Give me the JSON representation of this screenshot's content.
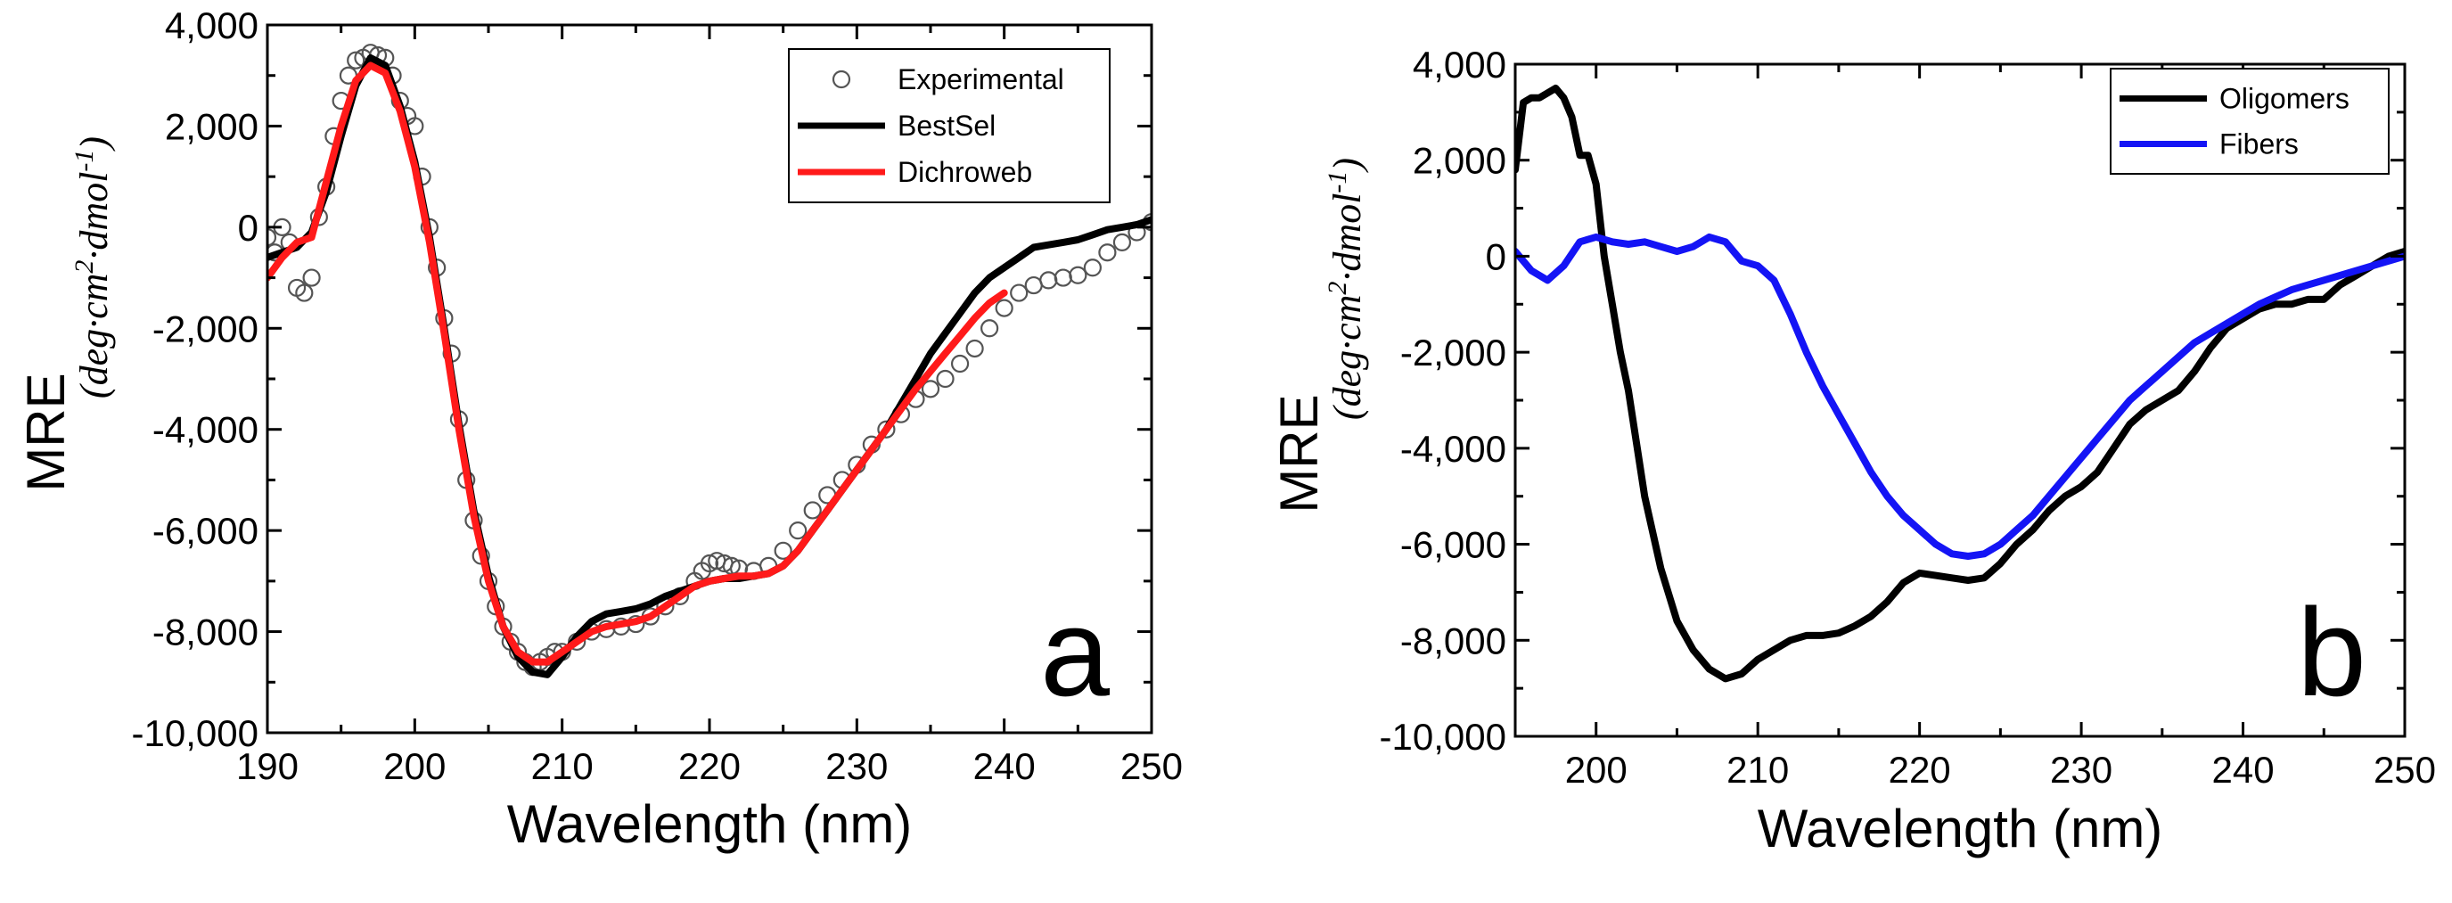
{
  "chart_data": [
    {
      "type": "line",
      "panel_label": "a",
      "xlabel": "Wavelength (nm)",
      "ylabel": "MRE",
      "ylabel_units": [
        "(deg",
        "·",
        "cm",
        "2",
        "·",
        "dmol",
        "-1",
        ")"
      ],
      "xlim": [
        190,
        250
      ],
      "ylim": [
        -10000,
        4000
      ],
      "x_ticks": [
        190,
        200,
        210,
        220,
        230,
        240,
        250
      ],
      "x_tick_labels": [
        "190",
        "200",
        "210",
        "220",
        "230",
        "240",
        "250"
      ],
      "y_ticks": [
        -10000,
        -8000,
        -6000,
        -4000,
        -2000,
        0,
        2000,
        4000
      ],
      "y_tick_labels": [
        "-10,000",
        "-8,000",
        "-6,000",
        "-4,000",
        "-2,000",
        "0",
        "2,000",
        "4,000"
      ],
      "legend_position": "top-right",
      "grid": false,
      "series": [
        {
          "name": "Experimental",
          "style": "markers",
          "color": "#555555",
          "x": [
            190,
            190.5,
            191,
            191.5,
            192,
            192.5,
            193,
            193.5,
            194,
            194.5,
            195,
            195.5,
            196,
            196.5,
            197,
            197.5,
            198,
            198.5,
            199,
            199.5,
            200,
            200.5,
            201,
            201.5,
            202,
            202.5,
            203,
            203.5,
            204,
            204.5,
            205,
            205.5,
            206,
            206.5,
            207,
            207.5,
            208,
            208.5,
            209,
            209.5,
            210,
            211,
            212,
            213,
            214,
            215,
            216,
            217,
            218,
            219,
            219.5,
            220,
            220.5,
            221,
            221.5,
            222,
            223,
            224,
            225,
            226,
            227,
            228,
            229,
            230,
            231,
            232,
            233,
            234,
            235,
            236,
            237,
            238,
            239,
            240,
            241,
            242,
            243,
            244,
            245,
            246,
            247,
            248,
            249,
            250
          ],
          "y": [
            -200,
            -500,
            0,
            -300,
            -1200,
            -1300,
            -1000,
            200,
            800,
            1800,
            2500,
            3000,
            3300,
            3350,
            3450,
            3400,
            3350,
            3000,
            2500,
            2200,
            2000,
            1000,
            0,
            -800,
            -1800,
            -2500,
            -3800,
            -5000,
            -5800,
            -6500,
            -7000,
            -7500,
            -7900,
            -8200,
            -8400,
            -8600,
            -8700,
            -8600,
            -8500,
            -8400,
            -8400,
            -8200,
            -8000,
            -7950,
            -7900,
            -7850,
            -7700,
            -7500,
            -7300,
            -7000,
            -6800,
            -6650,
            -6600,
            -6650,
            -6700,
            -6750,
            -6800,
            -6700,
            -6400,
            -6000,
            -5600,
            -5300,
            -5000,
            -4700,
            -4300,
            -4000,
            -3700,
            -3400,
            -3200,
            -3000,
            -2700,
            -2400,
            -2000,
            -1600,
            -1300,
            -1150,
            -1050,
            -1000,
            -950,
            -800,
            -500,
            -300,
            -100,
            100
          ]
        },
        {
          "name": "BestSel",
          "style": "line",
          "color": "#000000",
          "x": [
            190,
            191,
            192,
            193,
            194,
            195,
            196,
            197,
            198,
            199,
            200,
            201,
            202,
            203,
            204,
            205,
            206,
            207,
            208,
            209,
            210,
            211,
            212,
            213,
            214,
            215,
            216,
            217,
            218,
            219,
            220,
            221,
            222,
            223,
            224,
            225,
            226,
            227,
            228,
            229,
            230,
            231,
            232,
            233,
            234,
            235,
            236,
            237,
            238,
            239,
            240,
            241,
            242,
            243,
            244,
            245,
            246,
            247,
            248,
            249,
            250
          ],
          "y": [
            -600,
            -500,
            -400,
            -100,
            700,
            1800,
            2800,
            3350,
            3200,
            2400,
            1300,
            -200,
            -2000,
            -3900,
            -5600,
            -6900,
            -7900,
            -8500,
            -8800,
            -8850,
            -8500,
            -8100,
            -7800,
            -7650,
            -7600,
            -7550,
            -7450,
            -7300,
            -7200,
            -7100,
            -7000,
            -6950,
            -6950,
            -6900,
            -6850,
            -6700,
            -6400,
            -6000,
            -5600,
            -5200,
            -4800,
            -4400,
            -4000,
            -3500,
            -3000,
            -2500,
            -2100,
            -1700,
            -1300,
            -1000,
            -800,
            -600,
            -400,
            -350,
            -300,
            -250,
            -150,
            -50,
            0,
            50,
            150
          ]
        },
        {
          "name": "Dichroweb",
          "style": "line",
          "color": "#ff1a1a",
          "x": [
            190,
            191,
            192,
            193,
            194,
            195,
            196,
            197,
            198,
            199,
            200,
            201,
            202,
            203,
            204,
            205,
            206,
            207,
            208,
            209,
            210,
            211,
            212,
            213,
            214,
            215,
            216,
            217,
            218,
            219,
            220,
            221,
            222,
            223,
            224,
            225,
            226,
            227,
            228,
            229,
            230,
            231,
            232,
            233,
            234,
            235,
            236,
            237,
            238,
            239,
            240
          ],
          "y": [
            -1000,
            -600,
            -300,
            -200,
            900,
            2000,
            2900,
            3200,
            3050,
            2300,
            1200,
            -300,
            -2100,
            -4000,
            -5700,
            -7000,
            -7900,
            -8400,
            -8600,
            -8600,
            -8400,
            -8200,
            -8000,
            -7900,
            -7850,
            -7800,
            -7700,
            -7500,
            -7300,
            -7100,
            -7000,
            -6950,
            -6900,
            -6900,
            -6850,
            -6700,
            -6400,
            -6000,
            -5600,
            -5200,
            -4800,
            -4400,
            -4000,
            -3600,
            -3200,
            -2850,
            -2500,
            -2150,
            -1800,
            -1500,
            -1300
          ]
        }
      ]
    },
    {
      "type": "line",
      "panel_label": "b",
      "xlabel": "Wavelength (nm)",
      "ylabel": "MRE",
      "ylabel_units": [
        "(deg",
        "·",
        "cm",
        "2",
        "·",
        "dmol",
        "-1",
        ")"
      ],
      "xlim": [
        195,
        250
      ],
      "ylim": [
        -10000,
        4000
      ],
      "x_ticks": [
        200,
        210,
        220,
        230,
        240,
        250
      ],
      "x_tick_labels": [
        "200",
        "210",
        "220",
        "230",
        "240",
        "250"
      ],
      "y_ticks": [
        -10000,
        -8000,
        -6000,
        -4000,
        -2000,
        0,
        2000,
        4000
      ],
      "y_tick_labels": [
        "-10,000",
        "-8,000",
        "-6,000",
        "-4,000",
        "-2,000",
        "0",
        "2,000",
        "4,000"
      ],
      "legend_position": "top-right",
      "grid": false,
      "series": [
        {
          "name": "Oligomers",
          "style": "line",
          "color": "#000000",
          "x": [
            195,
            195.5,
            196,
            196.5,
            197,
            197.5,
            198,
            198.5,
            199,
            199.5,
            200,
            200.5,
            201,
            201.5,
            202,
            203,
            204,
            205,
            206,
            207,
            208,
            209,
            210,
            211,
            212,
            213,
            214,
            215,
            216,
            217,
            218,
            219,
            220,
            221,
            222,
            223,
            224,
            225,
            226,
            227,
            228,
            229,
            230,
            231,
            232,
            233,
            234,
            235,
            236,
            237,
            238,
            239,
            240,
            241,
            242,
            243,
            244,
            245,
            246,
            247,
            248,
            249,
            250
          ],
          "y": [
            1800,
            3200,
            3300,
            3300,
            3400,
            3500,
            3300,
            2900,
            2100,
            2100,
            1500,
            0,
            -1000,
            -2000,
            -2800,
            -5000,
            -6500,
            -7600,
            -8200,
            -8600,
            -8800,
            -8700,
            -8400,
            -8200,
            -8000,
            -7900,
            -7900,
            -7850,
            -7700,
            -7500,
            -7200,
            -6800,
            -6600,
            -6650,
            -6700,
            -6750,
            -6700,
            -6400,
            -6000,
            -5700,
            -5300,
            -5000,
            -4800,
            -4500,
            -4000,
            -3500,
            -3200,
            -3000,
            -2800,
            -2400,
            -1900,
            -1500,
            -1300,
            -1100,
            -1000,
            -1000,
            -900,
            -900,
            -600,
            -400,
            -200,
            0,
            100
          ]
        },
        {
          "name": "Fibers",
          "style": "line",
          "color": "#1414f5",
          "x": [
            195,
            196,
            197,
            198,
            199,
            200,
            201,
            202,
            203,
            204,
            205,
            206,
            207,
            208,
            209,
            210,
            211,
            212,
            213,
            214,
            215,
            216,
            217,
            218,
            219,
            220,
            221,
            222,
            223,
            224,
            225,
            226,
            227,
            228,
            229,
            230,
            231,
            232,
            233,
            234,
            235,
            236,
            237,
            238,
            239,
            240,
            241,
            242,
            243,
            244,
            245,
            246,
            247,
            248,
            249,
            250
          ],
          "y": [
            100,
            -300,
            -500,
            -200,
            300,
            400,
            300,
            250,
            300,
            200,
            100,
            200,
            400,
            300,
            -100,
            -200,
            -500,
            -1200,
            -2000,
            -2700,
            -3300,
            -3900,
            -4500,
            -5000,
            -5400,
            -5700,
            -6000,
            -6200,
            -6250,
            -6200,
            -6000,
            -5700,
            -5400,
            -5000,
            -4600,
            -4200,
            -3800,
            -3400,
            -3000,
            -2700,
            -2400,
            -2100,
            -1800,
            -1600,
            -1400,
            -1200,
            -1000,
            -850,
            -700,
            -600,
            -500,
            -400,
            -300,
            -200,
            -100,
            0
          ]
        }
      ]
    }
  ]
}
